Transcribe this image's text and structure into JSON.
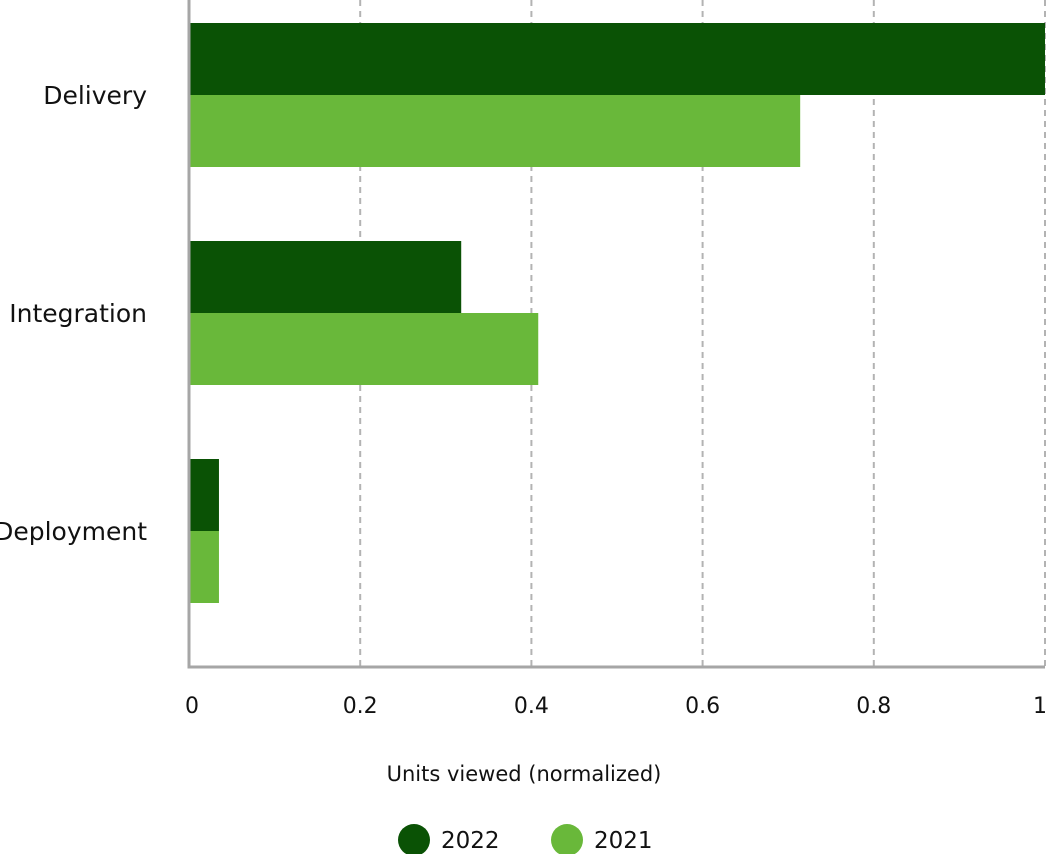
{
  "chart_data": {
    "type": "bar",
    "orientation": "horizontal",
    "categories": [
      "Delivery",
      "Integration",
      "Deployment"
    ],
    "series": [
      {
        "name": "2022",
        "color": "#0a5205",
        "values": [
          1.0,
          0.318,
          0.035
        ]
      },
      {
        "name": "2021",
        "color": "#69b83a",
        "values": [
          0.714,
          0.408,
          0.035
        ]
      }
    ],
    "xlabel": "Units viewed (normalized)",
    "ylabel": "",
    "xlim": [
      0,
      1
    ],
    "xticks": [
      0,
      0.2,
      0.4,
      0.6,
      0.8,
      1
    ],
    "xtick_labels": [
      "0",
      "0.2",
      "0.4",
      "0.6",
      "0.8",
      "1"
    ],
    "grid": "vertical dashed",
    "legend": "bottom-center"
  }
}
